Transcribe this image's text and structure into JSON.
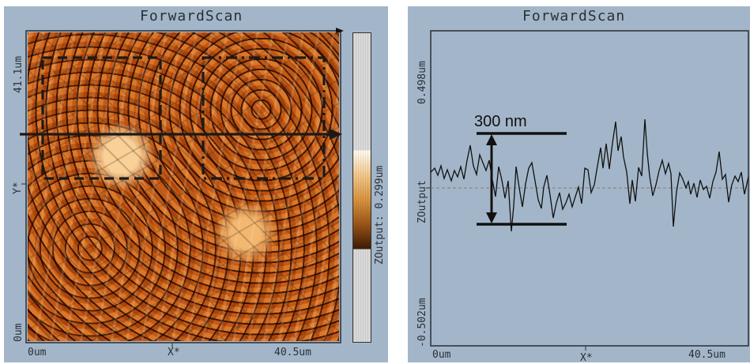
{
  "left_panel": {
    "title": "ForwardScan",
    "y_axis": {
      "top_label": "41.1um",
      "mid_label": "Y*",
      "bottom_label": "0um"
    },
    "x_axis": {
      "left_label": "0um",
      "mid_label": "X*",
      "right_label": "40.5um"
    },
    "colorbar_label": "ZOutput: 0.299um"
  },
  "right_panel": {
    "title": "ForwardScan",
    "y_axis": {
      "top_label": "0.498um",
      "mid_label": "ZOutput",
      "bottom_label": "-0.502um"
    },
    "x_axis": {
      "left_label": "0um",
      "mid_label": "X*",
      "right_label": "40.5um"
    },
    "annotation": "300 nm",
    "profile_color": "#111111"
  },
  "colors": {
    "panel_bg": "#a3b6c9",
    "axis_text": "#2a2f36"
  }
}
